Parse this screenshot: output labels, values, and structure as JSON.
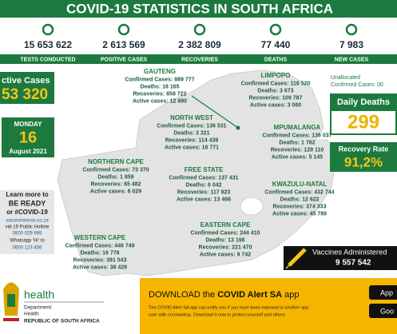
{
  "header": {
    "title": "COVID-19 STATISTICS IN SOUTH AFRICA"
  },
  "stats": [
    {
      "value": "15 653 622",
      "label": "TESTS CONDUCTED"
    },
    {
      "value": "2 613 569",
      "label": "POSITIVE CASES"
    },
    {
      "value": "2 382 809",
      "label": "RECOVERIES"
    },
    {
      "value": "77 440",
      "label": "DEATHS"
    },
    {
      "value": "7 983",
      "label": "NEW CASES"
    }
  ],
  "active": {
    "label": "ctive Cases",
    "value": "53 320"
  },
  "date": {
    "weekday": "MONDAY",
    "day": "16",
    "month": "August 2021"
  },
  "info": {
    "lines": [
      "Learn more to",
      "BE READY",
      "or #COVID-19",
      "sacoronavirus.co.za",
      "vid-19 Public Hotline",
      "0800 029 999",
      "Whatsapp 'Hi' to",
      "0600 123 456"
    ]
  },
  "department": {
    "name": "health",
    "line1": "Department:",
    "line2": "Health",
    "line3": "REPUBLIC OF SOUTH AFRICA"
  },
  "provinces": [
    {
      "name": "GAUTENG",
      "confirmed": "Confirmed Cases: 889 777",
      "deaths": "Deaths: 18 165",
      "recoveries": "Recoveries: 858 722",
      "active": "Active cases: 12 890"
    },
    {
      "name": "LIMPOPO",
      "confirmed": "Confirmed Cases: 116 520",
      "deaths": "Deaths: 3 673",
      "recoveries": "Recoveries: 109 787",
      "active": "Active cases: 3 060"
    },
    {
      "name": "NORTH WEST",
      "confirmed": "Confirmed Cases: 136 531",
      "deaths": "Deaths: 3 321",
      "recoveries": "Recoveries: 114 439",
      "active": "Active cases: 18 771"
    },
    {
      "name": "MPUMALANGA",
      "confirmed": "Confirmed Cases: 136 037",
      "deaths": "Deaths: 1 782",
      "recoveries": "Recoveries: 129 110",
      "active": "Active cases: 5 145"
    },
    {
      "name": "NORTHERN CAPE",
      "confirmed": "Confirmed Cases: 73 370",
      "deaths": "Deaths: 1 859",
      "recoveries": "Recoveries: 65 482",
      "active": "Active cases: 6 029"
    },
    {
      "name": "FREE STATE",
      "confirmed": "Confirmed Cases: 137 431",
      "deaths": "Deaths: 6 042",
      "recoveries": "Recoveries: 117 923",
      "active": "Active cases: 13 466"
    },
    {
      "name": "KWAZULU-NATAL",
      "confirmed": "Confirmed Cases: 432 744",
      "deaths": "Deaths: 12 622",
      "recoveries": "Recoveries: 374 333",
      "active": "Active cases: 45 789"
    },
    {
      "name": "EASTERN CAPE",
      "confirmed": "Confirmed Cases: 244 410",
      "deaths": "Deaths: 13 198",
      "recoveries": "Recoveries: 221 470",
      "active": "Active cases: 9 742"
    },
    {
      "name": "WESTERN CAPE",
      "confirmed": "Confirmed Cases: 446 749",
      "deaths": "Deaths: 16 778",
      "recoveries": "Recoveries: 391 543",
      "active": "Active cases: 38 428"
    }
  ],
  "unallocated": {
    "title": "Unallocated",
    "text": "Confirmed Cases: 00"
  },
  "daily_deaths": {
    "label": "Daily Deaths",
    "value": "299"
  },
  "recovery_rate": {
    "label": "Recovery Rate",
    "value": "91,2%"
  },
  "vaccines": {
    "label": "Vaccines Administered",
    "value": "9 557 542"
  },
  "app": {
    "title_pre": "DOWNLOAD the ",
    "title_bold": "COVID Alert SA",
    "title_post": " app",
    "body1": "The COVID Alert SA app can notify you if you have been exposed to another app",
    "body2": "user with coronavirus. Download it now to protect yourself and others",
    "badge1": "App",
    "badge2": "Goo"
  }
}
